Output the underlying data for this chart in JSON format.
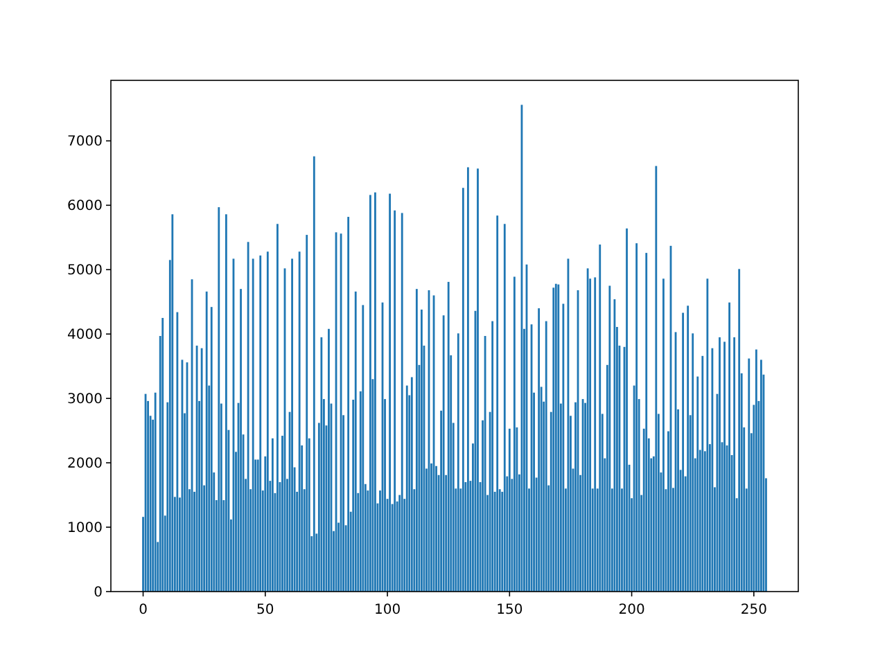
{
  "chart_data": {
    "type": "bar",
    "color": "#1f77b4",
    "xlim": [
      -13.2,
      268.2
    ],
    "ylim": [
      0,
      7940
    ],
    "xticks": [
      0,
      50,
      100,
      150,
      200,
      250
    ],
    "yticks": [
      0,
      1000,
      2000,
      3000,
      4000,
      5000,
      6000,
      7000
    ],
    "grid": false,
    "x": [
      0,
      1,
      2,
      3,
      4,
      5,
      6,
      7,
      8,
      9,
      10,
      11,
      12,
      13,
      14,
      15,
      16,
      17,
      18,
      19,
      20,
      21,
      22,
      23,
      24,
      25,
      26,
      27,
      28,
      29,
      30,
      31,
      32,
      33,
      34,
      35,
      36,
      37,
      38,
      39,
      40,
      41,
      42,
      43,
      44,
      45,
      46,
      47,
      48,
      49,
      50,
      51,
      52,
      53,
      54,
      55,
      56,
      57,
      58,
      59,
      60,
      61,
      62,
      63,
      64,
      65,
      66,
      67,
      68,
      69,
      70,
      71,
      72,
      73,
      74,
      75,
      76,
      77,
      78,
      79,
      80,
      81,
      82,
      83,
      84,
      85,
      86,
      87,
      88,
      89,
      90,
      91,
      92,
      93,
      94,
      95,
      96,
      97,
      98,
      99,
      100,
      101,
      102,
      103,
      104,
      105,
      106,
      107,
      108,
      109,
      110,
      111,
      112,
      113,
      114,
      115,
      116,
      117,
      118,
      119,
      120,
      121,
      122,
      123,
      124,
      125,
      126,
      127,
      128,
      129,
      130,
      131,
      132,
      133,
      134,
      135,
      136,
      137,
      138,
      139,
      140,
      141,
      142,
      143,
      144,
      145,
      146,
      147,
      148,
      149,
      150,
      151,
      152,
      153,
      154,
      155,
      156,
      157,
      158,
      159,
      160,
      161,
      162,
      163,
      164,
      165,
      166,
      167,
      168,
      169,
      170,
      171,
      172,
      173,
      174,
      175,
      176,
      177,
      178,
      179,
      180,
      181,
      182,
      183,
      184,
      185,
      186,
      187,
      188,
      189,
      190,
      191,
      192,
      193,
      194,
      195,
      196,
      197,
      198,
      199,
      200,
      201,
      202,
      203,
      204,
      205,
      206,
      207,
      208,
      209,
      210,
      211,
      212,
      213,
      214,
      215,
      216,
      217,
      218,
      219,
      220,
      221,
      222,
      223,
      224,
      225,
      226,
      227,
      228,
      229,
      230,
      231,
      232,
      233,
      234,
      235,
      236,
      237,
      238,
      239,
      240,
      241,
      242,
      243,
      244,
      245,
      246,
      247,
      248,
      249,
      250,
      251,
      252,
      253,
      254,
      255
    ],
    "values": [
      1160,
      3070,
      2960,
      2730,
      2670,
      3090,
      770,
      3970,
      4250,
      1180,
      2940,
      5150,
      5860,
      1470,
      4340,
      1460,
      3600,
      2770,
      3560,
      1590,
      4850,
      1550,
      3820,
      2960,
      3780,
      1650,
      4660,
      3200,
      4420,
      1850,
      1420,
      5970,
      2920,
      1420,
      5860,
      2510,
      1120,
      5170,
      2170,
      2930,
      4700,
      2440,
      1750,
      5430,
      1590,
      5170,
      2050,
      2050,
      5220,
      1570,
      2100,
      5280,
      1720,
      2380,
      1530,
      5710,
      1700,
      2420,
      5020,
      1750,
      2790,
      5170,
      1930,
      1550,
      5280,
      2270,
      1590,
      5540,
      2380,
      860,
      6760,
      900,
      2620,
      3950,
      2990,
      2580,
      4080,
      2920,
      940,
      5580,
      1070,
      5560,
      2740,
      1030,
      5820,
      1240,
      2980,
      4660,
      1530,
      3110,
      4450,
      1670,
      1570,
      6160,
      3300,
      6200,
      1370,
      1570,
      4490,
      2990,
      1440,
      6180,
      1360,
      5920,
      1400,
      1500,
      5880,
      1440,
      3200,
      3050,
      3330,
      1590,
      4700,
      3520,
      4380,
      3820,
      1910,
      4680,
      1990,
      4600,
      1950,
      1810,
      2810,
      4290,
      1810,
      4810,
      3670,
      2620,
      1600,
      4010,
      1600,
      6270,
      1700,
      6590,
      1720,
      2300,
      4360,
      6570,
      1700,
      2660,
      3970,
      1500,
      2790,
      4200,
      1550,
      5840,
      1590,
      1550,
      5710,
      1790,
      2530,
      1750,
      4890,
      2550,
      1820,
      7560,
      4080,
      5080,
      1600,
      4150,
      3090,
      1770,
      4400,
      3180,
      2950,
      4200,
      1650,
      2790,
      4720,
      4780,
      4770,
      2920,
      4470,
      1600,
      5170,
      2730,
      1910,
      2940,
      4680,
      1810,
      2990,
      2930,
      5020,
      4860,
      1600,
      4880,
      1600,
      5390,
      2760,
      2070,
      3520,
      4750,
      1600,
      4540,
      4110,
      3820,
      1600,
      3800,
      5640,
      1970,
      1450,
      3200,
      5410,
      2990,
      1500,
      2530,
      5260,
      2380,
      2070,
      2100,
      6610,
      2760,
      1850,
      4860,
      1590,
      2490,
      5370,
      1610,
      4030,
      2830,
      1890,
      4330,
      1790,
      4440,
      2740,
      4010,
      2070,
      3340,
      2200,
      3660,
      2180,
      4860,
      2290,
      3780,
      1620,
      3070,
      3950,
      2320,
      3880,
      2270,
      4490,
      2120,
      3950,
      1450,
      5010,
      3390,
      2550,
      1600,
      3620,
      2460,
      2900,
      3760,
      2960,
      3600,
      3370,
      1760
    ]
  }
}
